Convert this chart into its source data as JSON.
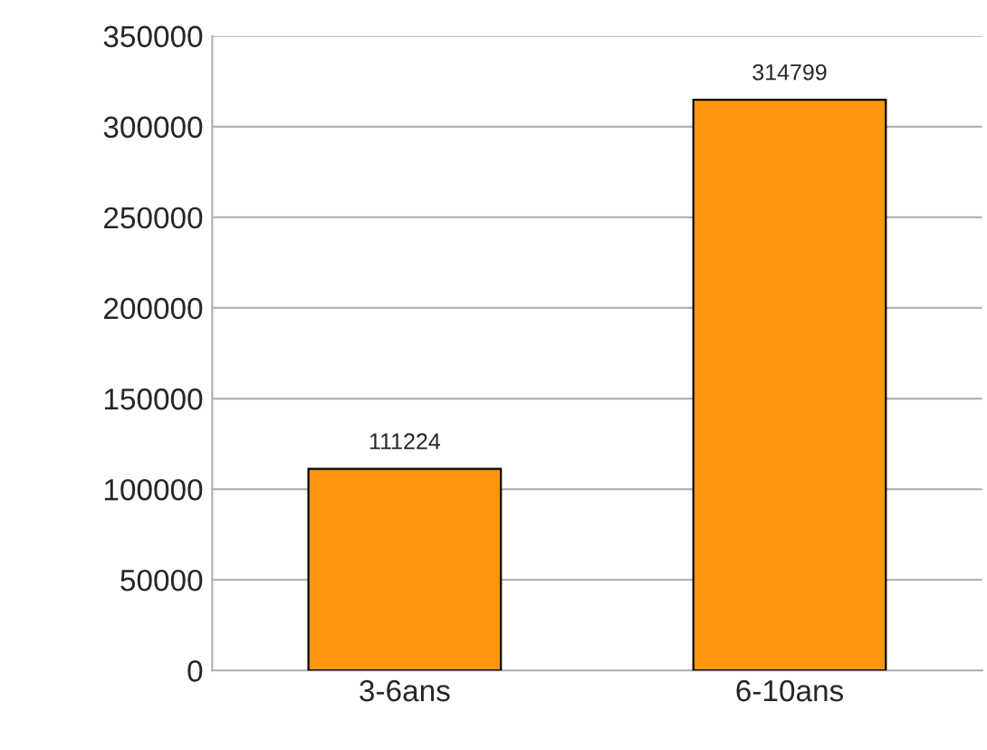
{
  "chart_data": {
    "type": "bar",
    "categories": [
      "3-6ans",
      "6-10ans"
    ],
    "values": [
      111224,
      314799
    ],
    "color": "#ff950e",
    "data_labels": true,
    "ylim": [
      0,
      350000
    ],
    "yticks": [
      0,
      50000,
      100000,
      150000,
      200000,
      250000,
      300000,
      350000
    ],
    "grid": "y"
  }
}
